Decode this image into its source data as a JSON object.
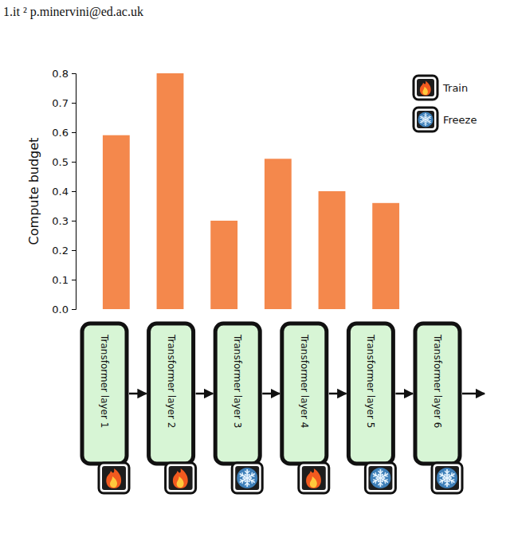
{
  "header": "1.it ² p.minervini@ed.ac.uk",
  "chart_data": {
    "type": "bar",
    "y_label": "Compute budget",
    "categories": [
      "Transformer layer 1",
      "Transformer layer 2",
      "Transformer layer 3",
      "Transformer layer 4",
      "Transformer layer 5",
      "Transformer layer 6"
    ],
    "values": [
      0.59,
      0.8,
      0.3,
      0.51,
      0.4,
      0.36
    ],
    "color": "#f4884c",
    "ylim": [
      0,
      0.8
    ],
    "yticks": [
      {
        "value": 0,
        "label": "0.0"
      },
      0.1,
      0.2,
      0.3,
      0.4,
      0.5,
      0.6,
      0.7,
      0.8
    ],
    "grid": false,
    "legend": "upper right",
    "legend_entries": [
      "Train",
      "Freeze"
    ],
    "layer_status": [
      "Train",
      "Train",
      "Freeze",
      "Train",
      "Freeze",
      "Freeze"
    ]
  }
}
